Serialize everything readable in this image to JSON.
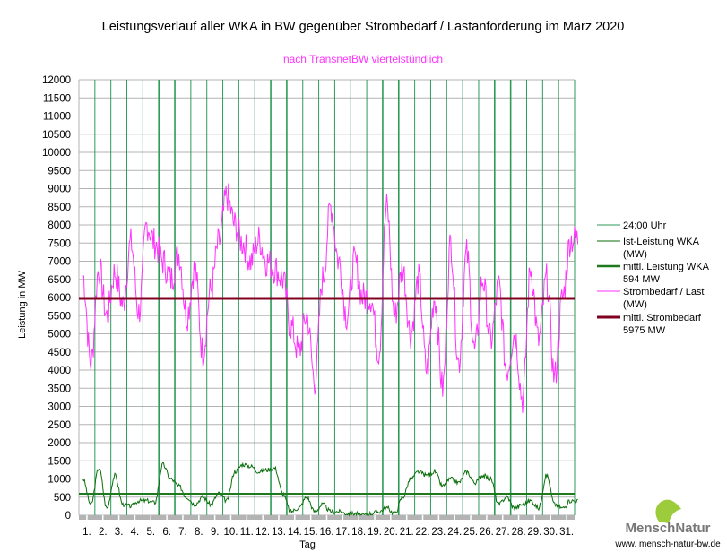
{
  "chart_data": {
    "type": "line",
    "title": "Leistungsverlauf aller WKA in BW gegenüber  Strombedarf / Lastanforderung im März 2020",
    "subtitle": "nach TransnetBW viertelstündlich",
    "xlabel": "Tag",
    "ylabel": "Leistung in MW",
    "ylim": [
      0,
      12000
    ],
    "ytick_step": 500,
    "yticks": [
      "0",
      "500",
      "1000",
      "1500",
      "2000",
      "2500",
      "3000",
      "3500",
      "4000",
      "4500",
      "5000",
      "5500",
      "6000",
      "6500",
      "7000",
      "7500",
      "8000",
      "8500",
      "9000",
      "9500",
      "10000",
      "10500",
      "11000",
      "11500",
      "12000"
    ],
    "xticks": [
      "1.",
      "2.",
      "3.",
      "4.",
      "5.",
      "6.",
      "7.",
      "8.",
      "9.",
      "10.",
      "11.",
      "12.",
      "13.",
      "14.",
      "15.",
      "16.",
      "17.",
      "18.",
      "19.",
      "20.",
      "21.",
      "22.",
      "23.",
      "24.",
      "25.",
      "26.",
      "27.",
      "28.",
      "29.",
      "30.",
      "31."
    ],
    "grid": true,
    "legend_position": "right",
    "x_resolution": "half-day samples (approx.)",
    "series": [
      {
        "name": "24:00 Uhr",
        "color": "#2e9a5a",
        "kind": "day-boundary"
      },
      {
        "name": "Ist-Leistung WKA (MW)",
        "color": "#0a6e0a",
        "values": [
          1000,
          300,
          1300,
          200,
          1100,
          300,
          250,
          400,
          400,
          350,
          1400,
          1000,
          800,
          500,
          300,
          500,
          300,
          600,
          400,
          1200,
          1400,
          1350,
          1200,
          1250,
          1300,
          600,
          100,
          200,
          500,
          100,
          300,
          100,
          100,
          50,
          50,
          0,
          50,
          100,
          200,
          50,
          500,
          1000,
          1200,
          1100,
          1200,
          800,
          1000,
          900,
          1200,
          900,
          1100,
          1000,
          300,
          500,
          200,
          300,
          400,
          200,
          1100,
          300,
          200,
          400
        ]
      },
      {
        "name": "mittl. Leistung WKA 594 MW",
        "color": "#1f7a1f",
        "value": 594
      },
      {
        "name": "Strombedarf / Last (MW)",
        "color": "#ff33ff",
        "values": [
          6600,
          4200,
          6800,
          5500,
          6700,
          5800,
          7500,
          5600,
          8000,
          7500,
          7000,
          6500,
          7200,
          5500,
          6800,
          4500,
          6200,
          7500,
          8800,
          8000,
          7500,
          7000,
          7600,
          7000,
          6800,
          6500,
          5200,
          4500,
          5500,
          3700,
          6500,
          8500,
          7000,
          5500,
          7000,
          6000,
          6000,
          4500,
          8500,
          5500,
          6800,
          5000,
          6500,
          4000,
          6000,
          3500,
          7500,
          4200,
          7200,
          4500,
          6500,
          4800,
          6300,
          4000,
          5000,
          3200,
          6800,
          4800,
          6500,
          3800,
          6000,
          7600
        ]
      },
      {
        "name": "mittl. Strombedarf 5975 MW",
        "color": "#800020",
        "value": 5975
      }
    ]
  },
  "legend": [
    {
      "line1": "24:00 Uhr",
      "line2": ""
    },
    {
      "line1": "Ist-Leistung WKA",
      "line2": "(MW)"
    },
    {
      "line1": "mittl. Leistung WKA",
      "line2": "594 MW"
    },
    {
      "line1": "Strombedarf / Last",
      "line2": "(MW)"
    },
    {
      "line1": "mittl. Strombedarf",
      "line2": "5975 MW"
    }
  ],
  "logo": {
    "name": "MenschNatur",
    "url": "www. mensch-natur-bw.de"
  }
}
